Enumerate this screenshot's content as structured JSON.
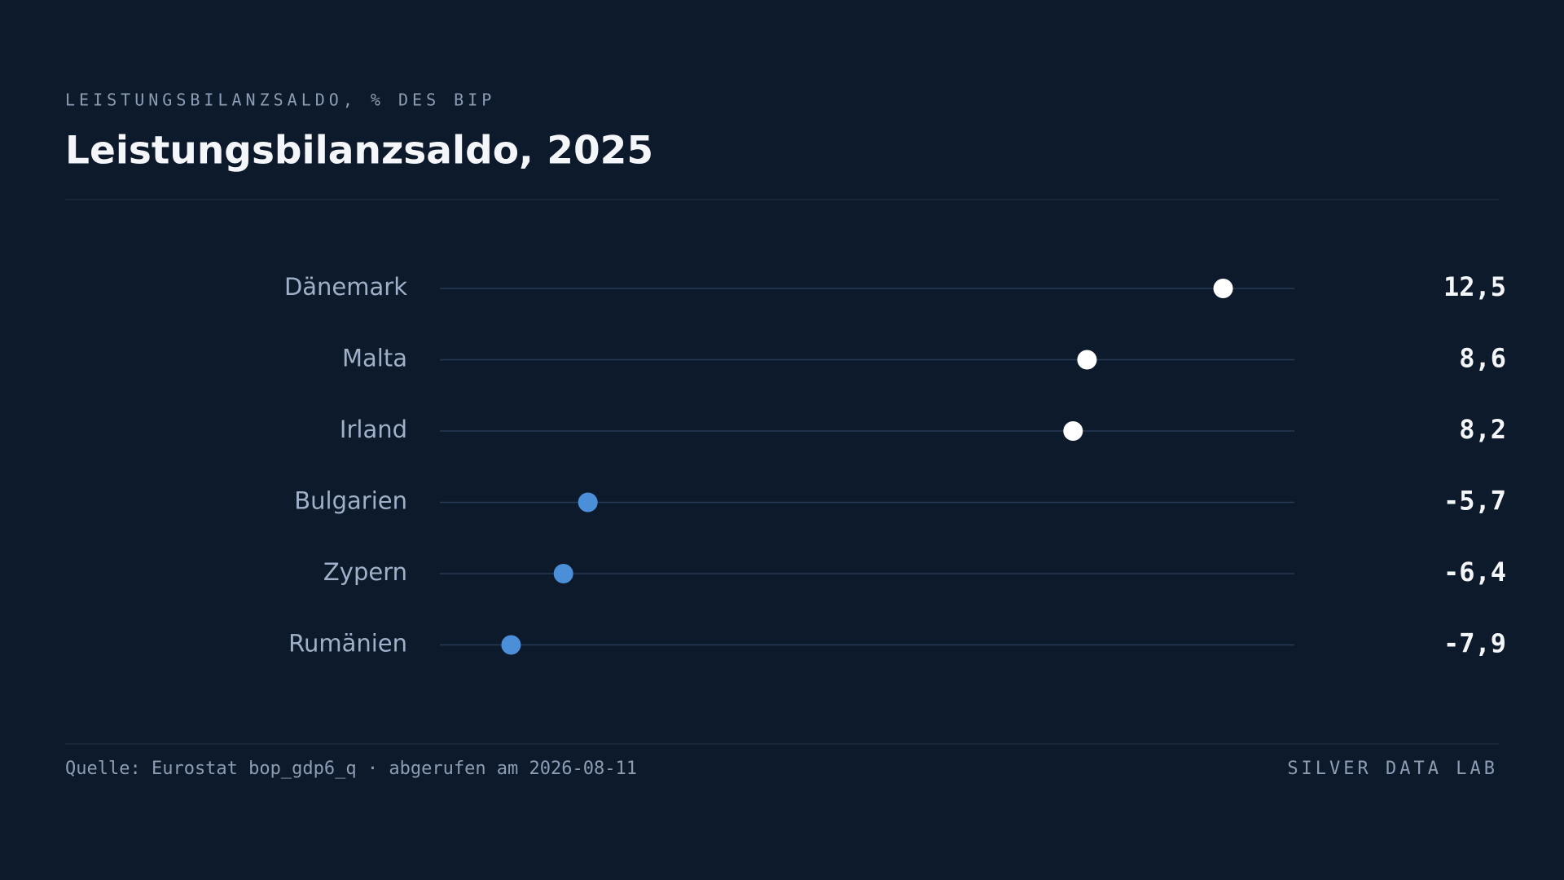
{
  "chart_data": {
    "type": "dot",
    "supertitle": "LEISTUNGSBILANZSALDO, % DES BIP",
    "title": "Leistungsbilanzsaldo, 2025",
    "categories": [
      "Dänemark",
      "Malta",
      "Irland",
      "Bulgarien",
      "Zypern",
      "Rumänien"
    ],
    "values": [
      12.5,
      8.6,
      8.2,
      -5.7,
      -6.4,
      -7.9
    ],
    "value_labels": [
      "12,5",
      "8,6",
      "8,2",
      "-5,7",
      "-6,4",
      "-7,9"
    ],
    "color_positive": "#ffffff",
    "color_negative": "#4a8fd8",
    "source": "Quelle: Eurostat bop_gdp6_q · abgerufen am 2026-08-11",
    "brand": "SILVER DATA LAB"
  }
}
